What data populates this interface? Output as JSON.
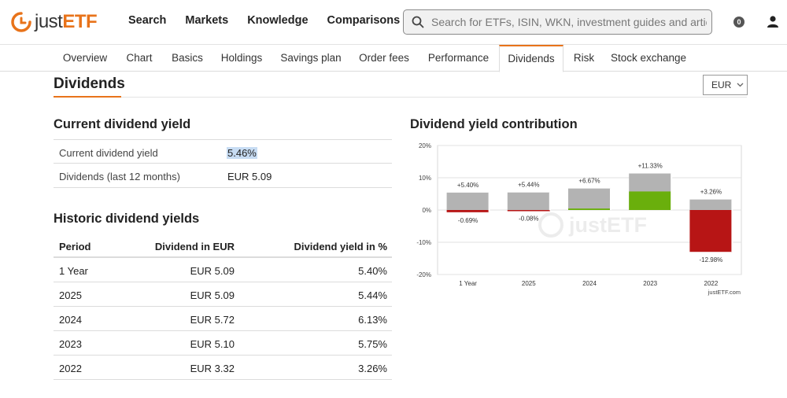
{
  "header": {
    "logo_just": "just",
    "logo_etf": "ETF",
    "nav": [
      "Search",
      "Markets",
      "Knowledge",
      "Comparisons"
    ],
    "search_placeholder": "Search for ETFs, ISIN, WKN, investment guides and artic...",
    "watchlist_count": "0"
  },
  "tabs": [
    "Overview",
    "Chart",
    "Basics",
    "Holdings",
    "Savings plan",
    "Order fees",
    "Performance",
    "Dividends",
    "Risk",
    "Stock exchange"
  ],
  "active_tab": "Dividends",
  "page": {
    "title": "Dividends",
    "currency": "EUR"
  },
  "current": {
    "title": "Current dividend yield",
    "rows": [
      {
        "label": "Current dividend yield",
        "value": "5.46%"
      },
      {
        "label": "Dividends (last 12 months)",
        "value": "EUR 5.09"
      }
    ]
  },
  "historic": {
    "title": "Historic dividend yields",
    "headers": [
      "Period",
      "Dividend in EUR",
      "Dividend yield in %"
    ],
    "rows": [
      {
        "period": "1 Year",
        "dividend": "EUR 5.09",
        "yield": "5.40%"
      },
      {
        "period": "2025",
        "dividend": "EUR 5.09",
        "yield": "5.44%"
      },
      {
        "period": "2024",
        "dividend": "EUR 5.72",
        "yield": "6.13%"
      },
      {
        "period": "2023",
        "dividend": "EUR 5.10",
        "yield": "5.75%"
      },
      {
        "period": "2022",
        "dividend": "EUR 3.32",
        "yield": "3.26%"
      }
    ]
  },
  "chart_data": {
    "type": "bar",
    "title": "Dividend yield contribution",
    "categories": [
      "1 Year",
      "2025",
      "2024",
      "2023",
      "2022"
    ],
    "series": [
      {
        "values": [
          5.4,
          5.44,
          6.67,
          11.33,
          3.26
        ],
        "labels": [
          "+5.40%",
          "+5.44%",
          "+6.67%",
          "+11.33%",
          "+3.26%"
        ]
      },
      {
        "values": [
          -0.69,
          -0.08,
          0.46,
          5.75,
          -12.98
        ],
        "labels": [
          "-0.69%",
          "-0.08%",
          "",
          "",
          "-12.98%"
        ]
      }
    ],
    "y_ticks": [
      "20%",
      "10%",
      "0%",
      "-10%",
      "-20%"
    ],
    "ylim": [
      -20,
      20
    ],
    "grid": true,
    "colors": {
      "dividend": "#b3b3b3",
      "positive": "#6aaf0c",
      "negative": "#b71515"
    },
    "watermark": "justETF",
    "credit": "justETF.com"
  }
}
